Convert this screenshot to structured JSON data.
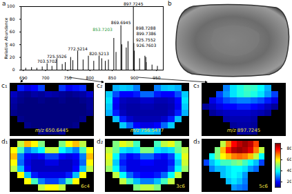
{
  "chart_data": [
    {
      "type": "spectrum",
      "panel": "a",
      "y_label": "Relative Abundance",
      "x": [
        655.5,
        668.6,
        680.5,
        692.6,
        703.5702,
        714.5,
        725.5526,
        737.6,
        744.5,
        756.6,
        761.6,
        772.5214,
        784.6,
        796.5,
        808.6,
        820.5213,
        826.6,
        834.6,
        841.6,
        853.7203,
        858.7,
        869.6945,
        871.7,
        881.7,
        885.7,
        897.7245,
        898.7288,
        899.7386,
        911.7,
        923.7,
        925.7552,
        926.7603,
        939.7,
        951.8
      ],
      "values": [
        3,
        4,
        3,
        5,
        10,
        6,
        18,
        9,
        12,
        20,
        15,
        30,
        16,
        22,
        14,
        22,
        18,
        14,
        16,
        50,
        28,
        70,
        40,
        35,
        45,
        100,
        42,
        30,
        18,
        22,
        20,
        12,
        8,
        6
      ],
      "labels": [
        null,
        null,
        null,
        null,
        "703.5702",
        null,
        "725.5526",
        null,
        null,
        null,
        null,
        "772.5214",
        null,
        null,
        null,
        "820.5213",
        null,
        null,
        null,
        "853.7203",
        null,
        "869.6945",
        null,
        null,
        null,
        "897.7245",
        "898.7288",
        "899.7386",
        null,
        null,
        "925.7552",
        "926.7603",
        null,
        null
      ],
      "colors": [
        "#000000",
        "#000000",
        "#000000",
        "#000000",
        "#000000",
        "#000000",
        "#000000",
        "#000000",
        "#000000",
        "#000000",
        "#000000",
        "#000000",
        "#000000",
        "#000000",
        "#000000",
        "#000000",
        "#000000",
        "#000000",
        "#000000",
        "#2e9a3c",
        "#000000",
        "#000000",
        "#000000",
        "#000000",
        "#000000",
        "#000000",
        "#000000",
        "#000000",
        "#000000",
        "#000000",
        "#000000",
        "#000000",
        "#000000",
        "#000000"
      ],
      "xlim": [
        645,
        965
      ],
      "xticks": [
        650,
        700,
        750,
        800,
        850,
        900,
        950
      ],
      "ylim": [
        0,
        100
      ],
      "yticks": [
        0,
        20,
        40,
        60,
        80,
        100
      ]
    },
    {
      "type": "image",
      "panel": "b"
    },
    {
      "type": "heatmap",
      "panel": "c₁",
      "label": "m/z 650.6445",
      "cells": [
        [
          null,
          22,
          18,
          20,
          25,
          null,
          null,
          24,
          19,
          21,
          23,
          null
        ],
        [
          15,
          12,
          11,
          13,
          12,
          14,
          13,
          12,
          11,
          12,
          13,
          16
        ],
        [
          13,
          11,
          10,
          10,
          11,
          10,
          10,
          11,
          10,
          10,
          11,
          12
        ],
        [
          12,
          10,
          10,
          10,
          10,
          10,
          10,
          10,
          10,
          10,
          10,
          12
        ],
        [
          11,
          10,
          10,
          10,
          10,
          10,
          10,
          10,
          10,
          10,
          10,
          11
        ],
        [
          null,
          11,
          10,
          10,
          10,
          10,
          10,
          10,
          10,
          10,
          11,
          null
        ],
        [
          null,
          null,
          11,
          10,
          10,
          10,
          10,
          10,
          10,
          11,
          null,
          null
        ],
        [
          null,
          null,
          null,
          null,
          11,
          10,
          10,
          12,
          null,
          null,
          null,
          null
        ]
      ]
    },
    {
      "type": "heatmap",
      "panel": "c₂",
      "label": "m/z 756.5477",
      "cells": [
        [
          null,
          34,
          36,
          35,
          30,
          null,
          null,
          30,
          35,
          36,
          34,
          null
        ],
        [
          36,
          26,
          20,
          20,
          22,
          28,
          28,
          22,
          20,
          20,
          26,
          36
        ],
        [
          38,
          20,
          15,
          14,
          14,
          16,
          16,
          14,
          14,
          15,
          20,
          38
        ],
        [
          36,
          19,
          14,
          13,
          13,
          14,
          14,
          13,
          13,
          14,
          19,
          36
        ],
        [
          34,
          22,
          15,
          13,
          13,
          13,
          13,
          13,
          13,
          15,
          22,
          34
        ],
        [
          null,
          35,
          22,
          16,
          14,
          14,
          14,
          14,
          16,
          22,
          35,
          null
        ],
        [
          null,
          null,
          36,
          28,
          20,
          18,
          18,
          20,
          28,
          36,
          null,
          null
        ],
        [
          null,
          null,
          null,
          null,
          34,
          36,
          36,
          34,
          null,
          null,
          null,
          null
        ]
      ]
    },
    {
      "type": "heatmap",
      "panel": "c₃",
      "label": "m/z 897.7245",
      "cells": [
        [
          null,
          null,
          null,
          30,
          38,
          42,
          45,
          44,
          40,
          34,
          null,
          null
        ],
        [
          null,
          null,
          25,
          32,
          38,
          42,
          44,
          42,
          38,
          32,
          25,
          null
        ],
        [
          null,
          18,
          22,
          26,
          28,
          30,
          30,
          28,
          26,
          22,
          18,
          null
        ],
        [
          12,
          15,
          18,
          20,
          20,
          22,
          22,
          20,
          18,
          15,
          12,
          null
        ],
        [
          null,
          12,
          14,
          15,
          16,
          16,
          16,
          15,
          14,
          12,
          null,
          null
        ],
        [
          null,
          null,
          null,
          13,
          14,
          14,
          14,
          13,
          null,
          null,
          null,
          null
        ],
        [
          null,
          null,
          null,
          null,
          12,
          13,
          13,
          12,
          null,
          null,
          null,
          null
        ],
        [
          null,
          null,
          null,
          null,
          null,
          12,
          12,
          11,
          null,
          null,
          null,
          null
        ]
      ]
    },
    {
      "type": "heatmap",
      "panel": "d₁",
      "label": "6c4",
      "cells": [
        [
          null,
          55,
          65,
          60,
          50,
          null,
          null,
          50,
          60,
          65,
          55,
          null
        ],
        [
          60,
          45,
          30,
          35,
          40,
          55,
          55,
          40,
          35,
          30,
          45,
          60
        ],
        [
          65,
          30,
          20,
          18,
          20,
          25,
          25,
          20,
          18,
          20,
          30,
          65
        ],
        [
          60,
          28,
          18,
          15,
          15,
          18,
          18,
          15,
          15,
          18,
          28,
          60
        ],
        [
          55,
          35,
          20,
          15,
          15,
          15,
          15,
          15,
          15,
          20,
          35,
          55
        ],
        [
          null,
          60,
          35,
          22,
          18,
          18,
          18,
          18,
          22,
          35,
          60,
          null
        ],
        [
          null,
          null,
          60,
          45,
          30,
          25,
          25,
          30,
          45,
          60,
          null,
          null
        ],
        [
          null,
          null,
          null,
          null,
          55,
          60,
          60,
          55,
          null,
          null,
          null,
          null
        ]
      ]
    },
    {
      "type": "heatmap",
      "panel": "d₂",
      "label": "3c6",
      "cells": [
        [
          null,
          50,
          58,
          55,
          45,
          null,
          null,
          45,
          55,
          58,
          50,
          null
        ],
        [
          55,
          48,
          38,
          36,
          38,
          50,
          50,
          38,
          36,
          38,
          48,
          55
        ],
        [
          58,
          40,
          25,
          20,
          22,
          28,
          28,
          22,
          20,
          25,
          40,
          58
        ],
        [
          56,
          36,
          22,
          18,
          18,
          20,
          20,
          18,
          18,
          22,
          36,
          56
        ],
        [
          52,
          40,
          25,
          18,
          18,
          18,
          18,
          18,
          18,
          25,
          40,
          52
        ],
        [
          null,
          55,
          40,
          28,
          22,
          20,
          20,
          22,
          28,
          40,
          55,
          null
        ],
        [
          null,
          null,
          55,
          45,
          35,
          30,
          30,
          35,
          45,
          55,
          null,
          null
        ],
        [
          null,
          null,
          null,
          null,
          50,
          55,
          55,
          50,
          null,
          null,
          null,
          null
        ]
      ]
    },
    {
      "type": "heatmap",
      "panel": "d₃",
      "label": "5c6",
      "cells": [
        [
          null,
          null,
          null,
          55,
          70,
          80,
          85,
          88,
          85,
          75,
          null,
          null
        ],
        [
          null,
          null,
          50,
          65,
          78,
          86,
          88,
          86,
          82,
          70,
          55,
          null
        ],
        [
          null,
          40,
          50,
          60,
          65,
          70,
          72,
          70,
          65,
          55,
          40,
          null
        ],
        [
          25,
          35,
          40,
          45,
          45,
          48,
          50,
          45,
          40,
          35,
          25,
          null
        ],
        [
          null,
          30,
          35,
          35,
          38,
          40,
          40,
          38,
          32,
          28,
          null,
          null
        ],
        [
          null,
          null,
          null,
          35,
          38,
          40,
          38,
          32,
          null,
          null,
          null,
          null
        ],
        [
          null,
          null,
          null,
          null,
          35,
          38,
          35,
          30,
          null,
          null,
          null,
          null
        ],
        [
          null,
          null,
          null,
          null,
          null,
          32,
          30,
          28,
          null,
          null,
          null,
          null
        ]
      ]
    }
  ],
  "colorbar": {
    "range": [
      10,
      90
    ],
    "ticks": [
      20,
      40,
      60,
      80
    ]
  }
}
